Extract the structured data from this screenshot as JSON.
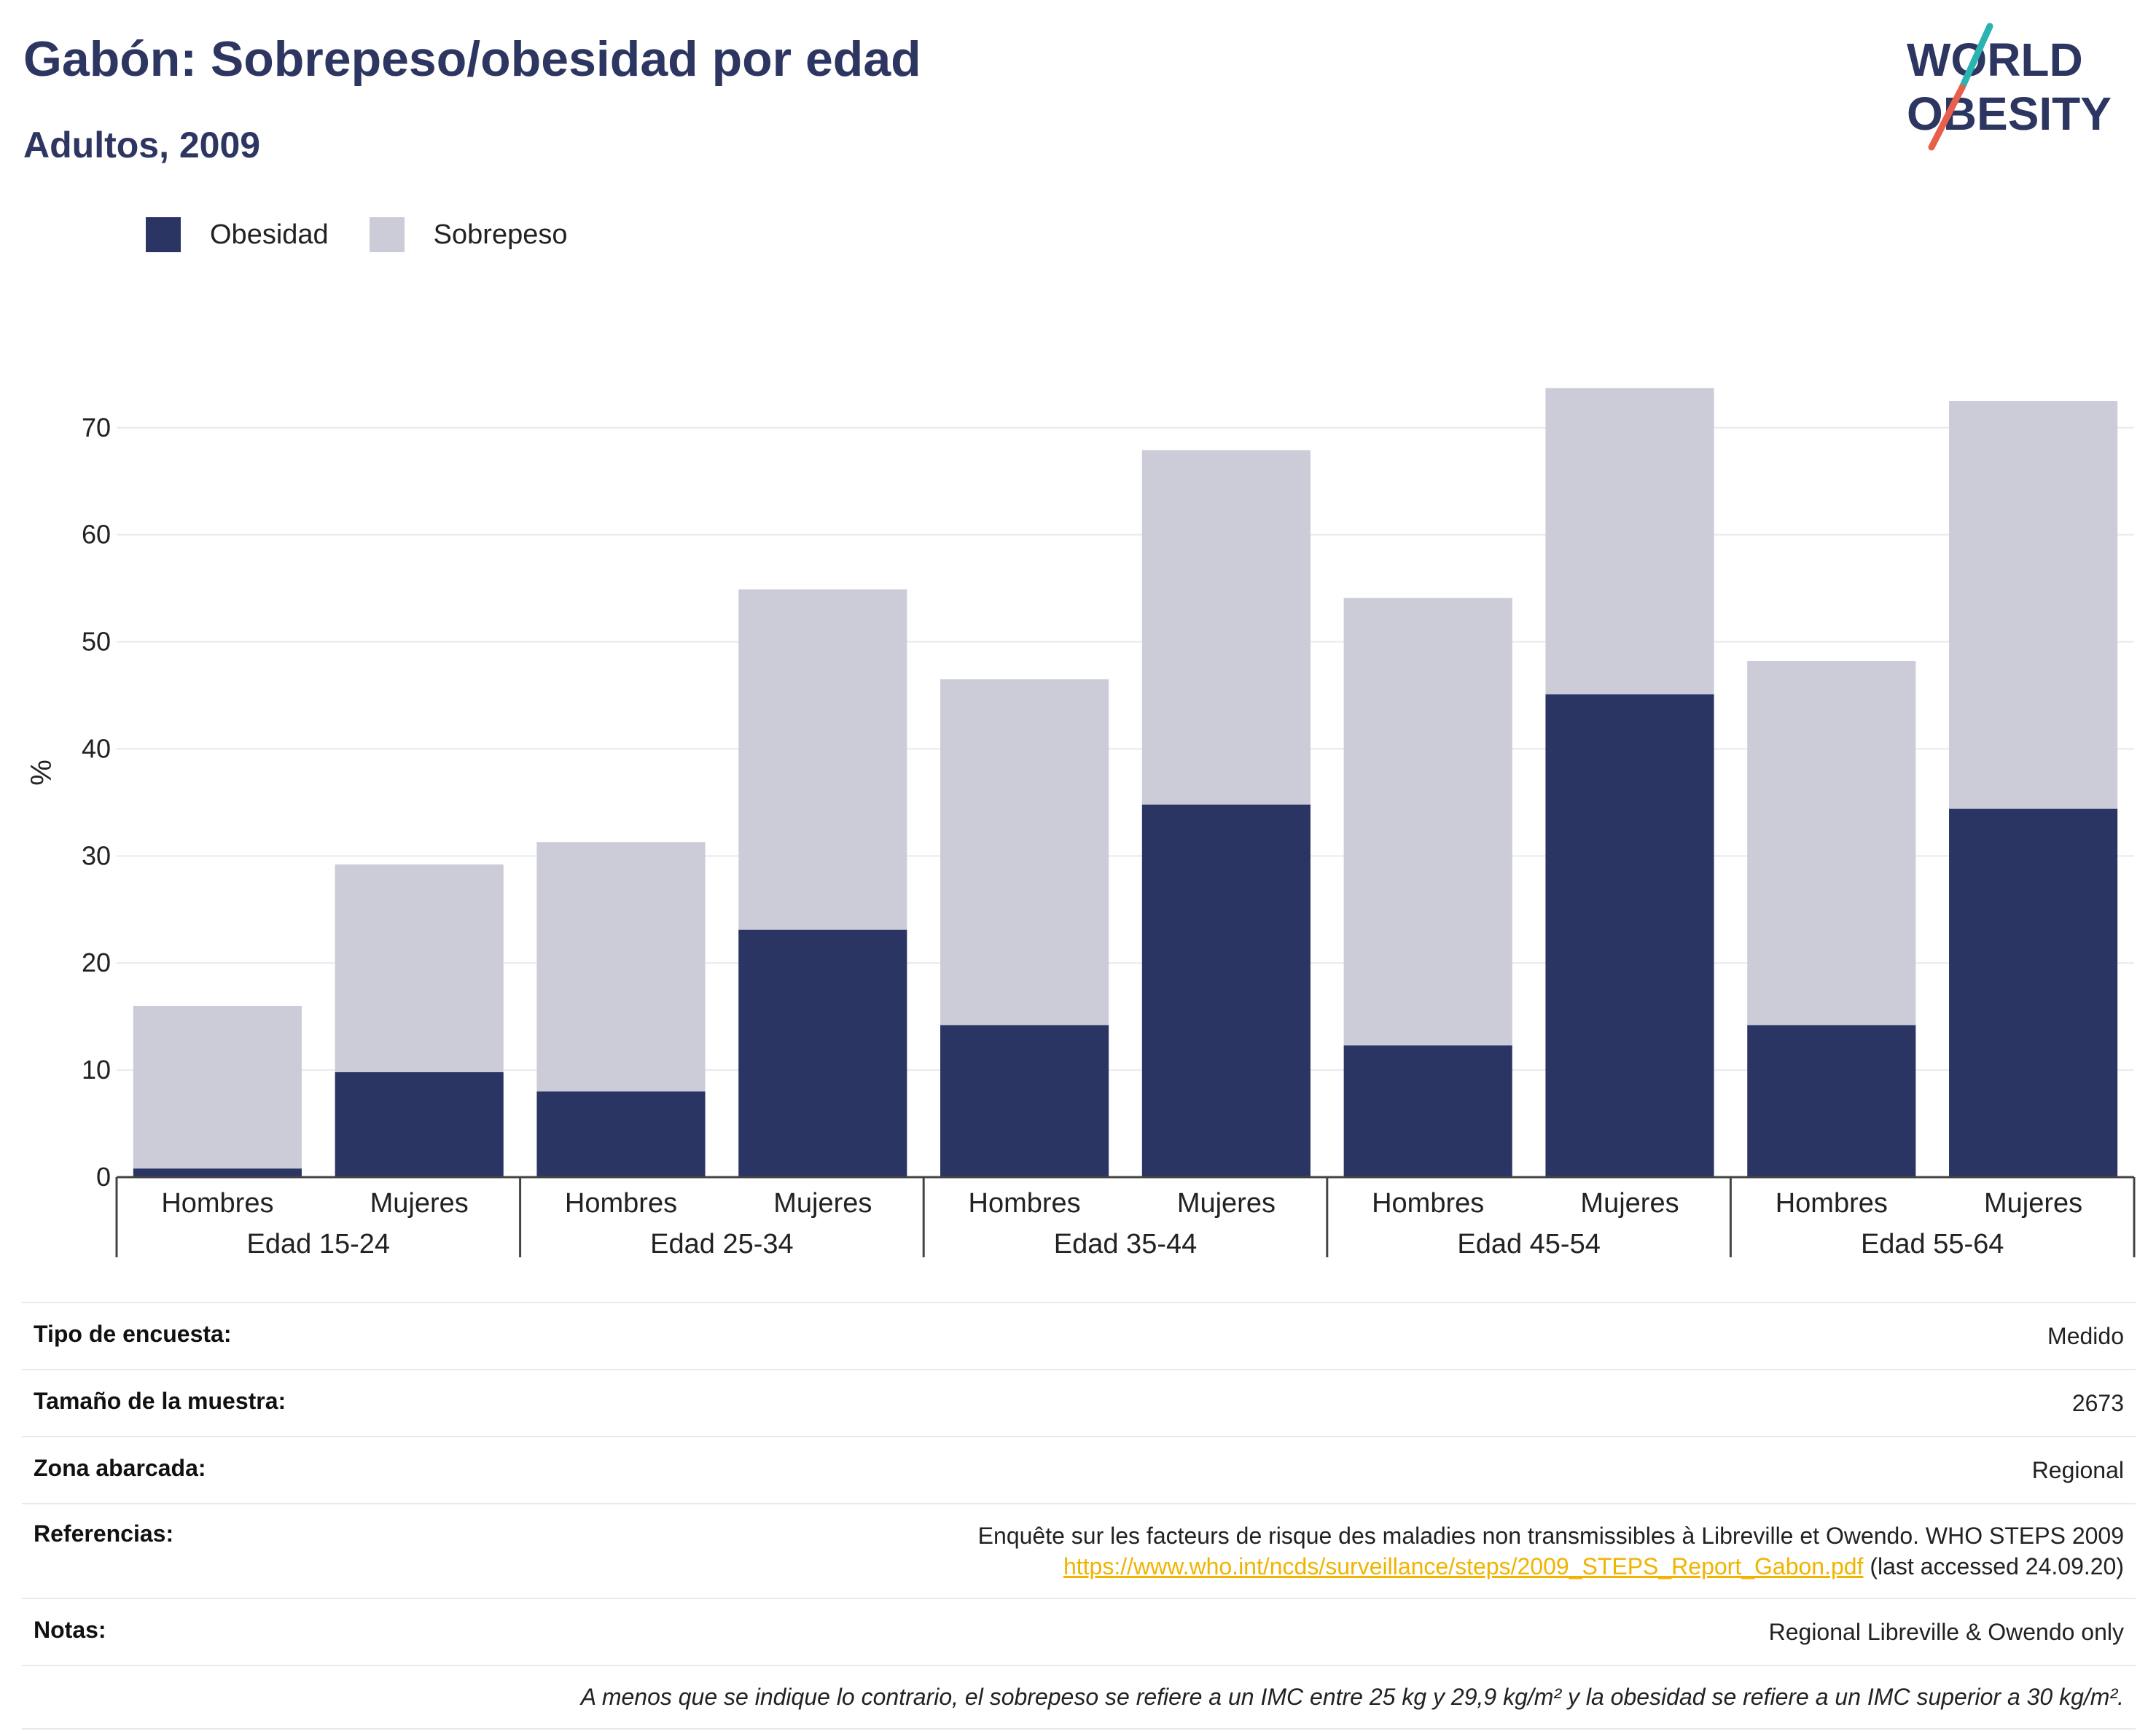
{
  "title": "Gabón: Sobrepeso/obesidad por edad",
  "subtitle": "Adultos, 2009",
  "logo": {
    "line1": "WORLD",
    "line2": "OBESITY"
  },
  "colors": {
    "obesity": "#2a3563",
    "overweight": "#cbccd8",
    "title": "#2d3561",
    "grid": "#e8e9ee",
    "link": "#f0b400",
    "logo_teal": "#2bb3b1",
    "logo_red": "#e8604c"
  },
  "chart_data": {
    "type": "bar",
    "stacked": true,
    "ylabel": "%",
    "ylim": [
      0,
      74
    ],
    "yticks": [
      0,
      10,
      20,
      30,
      40,
      50,
      60,
      70
    ],
    "groups": [
      "Edad 15-24",
      "Edad 25-34",
      "Edad 35-44",
      "Edad 45-54",
      "Edad 55-64"
    ],
    "subcategories": [
      "Hombres",
      "Mujeres"
    ],
    "series": [
      {
        "name": "Obesidad",
        "values": [
          0.8,
          9.8,
          8.0,
          23.1,
          14.2,
          34.8,
          12.3,
          45.1,
          14.2,
          34.4
        ]
      },
      {
        "name": "Sobrepeso",
        "values": [
          15.2,
          19.4,
          23.3,
          31.8,
          32.3,
          33.1,
          41.8,
          28.6,
          34.0,
          38.1
        ]
      }
    ],
    "totals": [
      16.0,
      29.2,
      31.3,
      54.9,
      46.5,
      67.9,
      54.1,
      73.7,
      48.2,
      72.5
    ],
    "legend": "top-left",
    "grid": true
  },
  "info": {
    "survey_type": {
      "label": "Tipo de encuesta:",
      "value": "Medido"
    },
    "sample_size": {
      "label": "Tamaño de la muestra:",
      "value": "2673"
    },
    "area": {
      "label": "Zona abarcada:",
      "value": "Regional"
    },
    "references": {
      "label": "Referencias:",
      "text": "Enquête sur les facteurs de risque des maladies non transmissibles à Libreville et Owendo. WHO STEPS 2009",
      "link": "https://www.who.int/ncds/surveillance/steps/2009_STEPS_Report_Gabon.pdf",
      "suffix": " (last accessed 24.09.20)"
    },
    "notes": {
      "label": "Notas:",
      "value": "Regional Libreville & Owendo only"
    },
    "footnote": "A menos que se indique lo contrario, el sobrepeso se refiere a un IMC entre 25 kg y 29,9 kg/m² y la obesidad se refiere a un IMC superior a 30 kg/m²."
  }
}
